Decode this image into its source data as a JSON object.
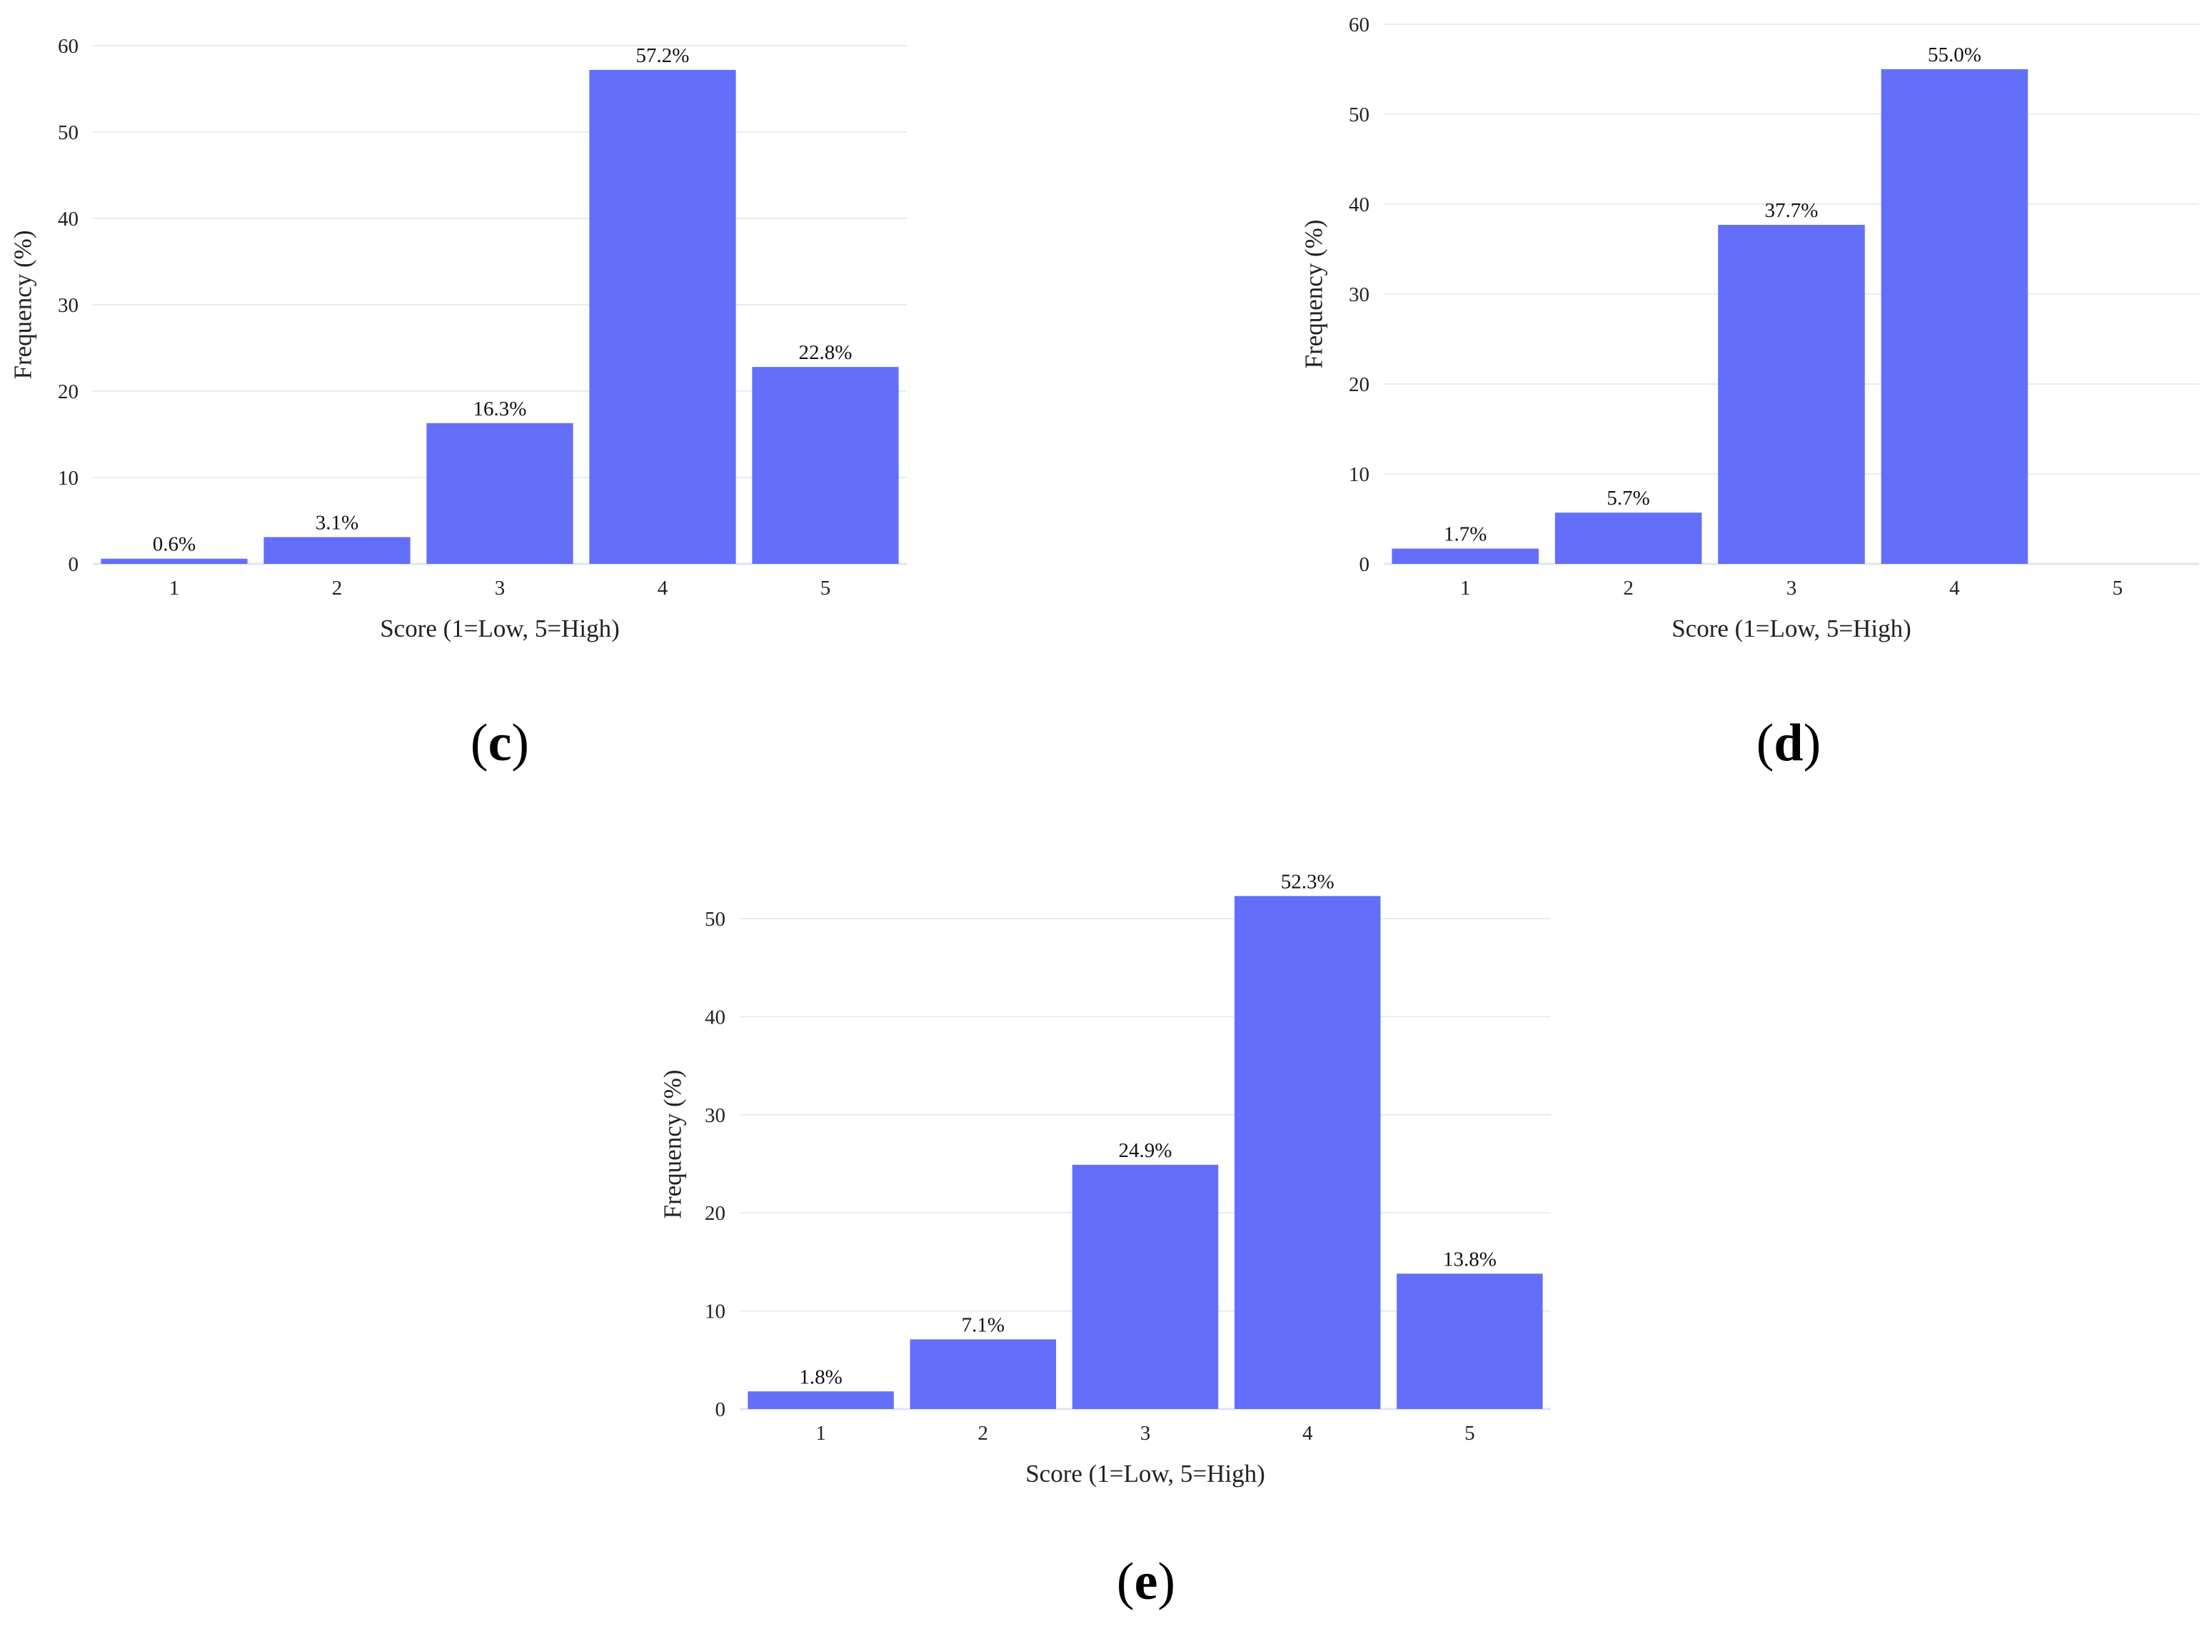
{
  "colors": {
    "bar": "#636efa",
    "grid": "#e8ebf5",
    "axis": "#e1e4ee",
    "text": "#222222"
  },
  "chart_data": [
    {
      "type": "bar",
      "panel": "c",
      "caption_open": "(",
      "caption_letter": "c",
      "caption_close": ")",
      "categories": [
        "1",
        "2",
        "3",
        "4",
        "5"
      ],
      "values": [
        0.6,
        3.1,
        16.3,
        57.2,
        22.8
      ],
      "data_labels": [
        "0.6%",
        "3.1%",
        "16.3%",
        "57.2%",
        "22.8%"
      ],
      "xlabel": "Score (1=Low, 5=High)",
      "ylabel": "Frequency (%)",
      "ylim": [
        0,
        60
      ],
      "yticks": [
        0,
        10,
        20,
        30,
        40,
        50,
        60
      ],
      "grid": true
    },
    {
      "type": "bar",
      "panel": "d",
      "caption_open": "(",
      "caption_letter": "d",
      "caption_close": ")",
      "categories": [
        "1",
        "2",
        "3",
        "4",
        "5"
      ],
      "values": [
        1.7,
        5.7,
        37.7,
        55.0,
        null
      ],
      "data_labels": [
        "1.7%",
        "5.7%",
        "37.7%",
        "55.0%",
        ""
      ],
      "xlabel": "Score (1=Low, 5=High)",
      "ylabel": "Frequency (%)",
      "ylim": [
        0,
        60
      ],
      "yticks": [
        0,
        10,
        20,
        30,
        40,
        50,
        60
      ],
      "grid": true
    },
    {
      "type": "bar",
      "panel": "e",
      "caption_open": "(",
      "caption_letter": "e",
      "caption_close": ")",
      "categories": [
        "1",
        "2",
        "3",
        "4",
        "5"
      ],
      "values": [
        1.8,
        7.1,
        24.9,
        52.3,
        13.8
      ],
      "data_labels": [
        "1.8%",
        "7.1%",
        "24.9%",
        "52.3%",
        "13.8%"
      ],
      "xlabel": "Score (1=Low, 5=High)",
      "ylabel": "Frequency (%)",
      "ylim": [
        0,
        54
      ],
      "yticks": [
        0,
        10,
        20,
        30,
        40,
        50
      ],
      "grid": true
    }
  ]
}
